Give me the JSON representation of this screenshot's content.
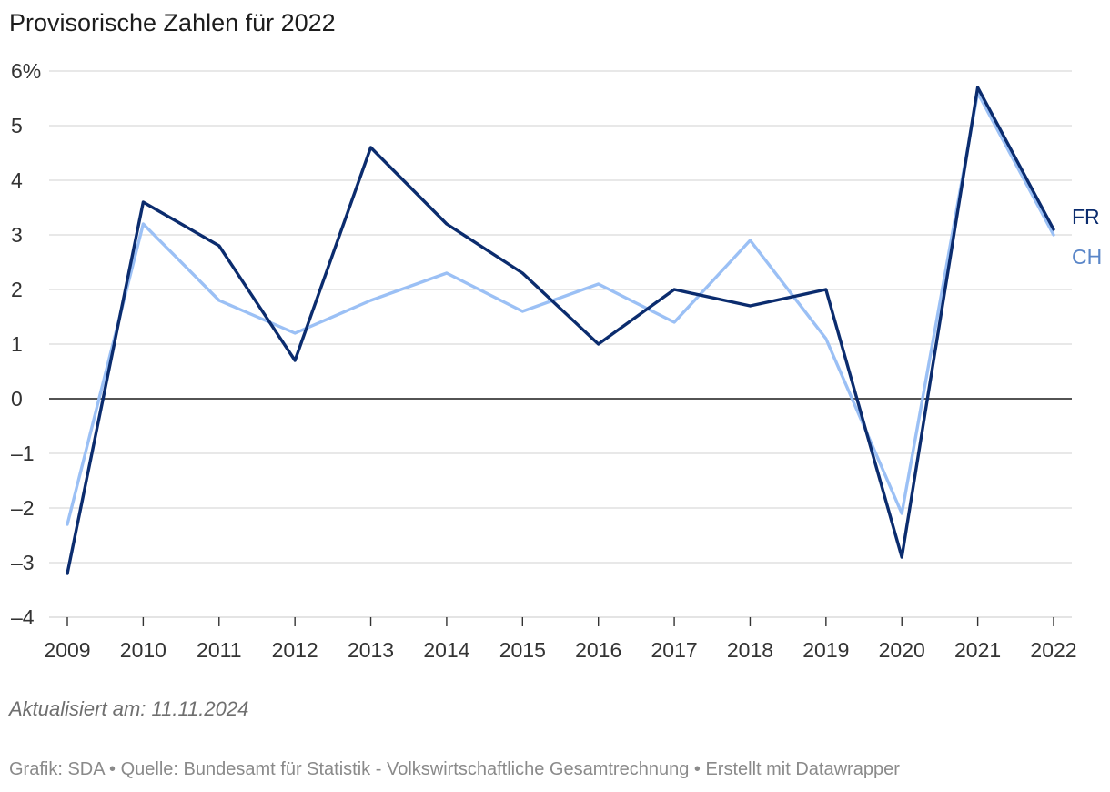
{
  "chart_data": {
    "type": "line",
    "title": "Provisorische Zahlen für 2022",
    "categories": [
      "2009",
      "2010",
      "2011",
      "2012",
      "2013",
      "2014",
      "2015",
      "2016",
      "2017",
      "2018",
      "2019",
      "2020",
      "2021",
      "2022"
    ],
    "y_ticks": [
      -4,
      -3,
      -2,
      -1,
      0,
      1,
      2,
      3,
      4,
      5,
      6
    ],
    "y_tick_labels": [
      "–4",
      "–3",
      "–2",
      "–1",
      "0",
      "1",
      "2",
      "3",
      "4",
      "5",
      "6%"
    ],
    "ylim": [
      -4,
      6
    ],
    "xlabel": "",
    "ylabel": "",
    "grid": true,
    "series": [
      {
        "name": "FR",
        "color": "#0b2c6e",
        "values": [
          -3.2,
          3.6,
          2.8,
          0.7,
          4.6,
          3.2,
          2.3,
          1.0,
          2.0,
          1.7,
          2.0,
          -2.9,
          5.7,
          3.1
        ]
      },
      {
        "name": "CH",
        "color": "#9bc0f5",
        "label_color": "#5a86c8",
        "values": [
          -2.3,
          3.2,
          1.8,
          1.2,
          1.8,
          2.3,
          1.6,
          2.1,
          1.4,
          2.9,
          1.1,
          -2.1,
          5.6,
          3.0
        ]
      }
    ]
  },
  "note": "Aktualisiert am: 11.11.2024",
  "footer": {
    "grafik": "Grafik: SDA",
    "quelle": "Quelle: Bundesamt für Statistik - Volkswirtschaftliche Gesamtrechnung",
    "erstellt": "Erstellt mit Datawrapper",
    "separator": " • "
  }
}
